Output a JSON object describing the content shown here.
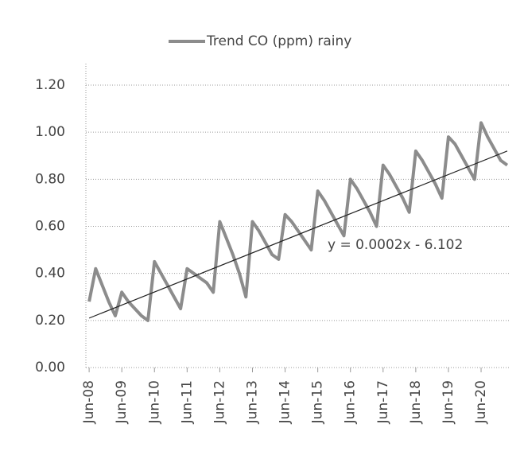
{
  "chart_data": {
    "type": "line",
    "categories": [
      "Jun-08",
      null,
      null,
      null,
      null,
      "Jun-09",
      null,
      null,
      null,
      null,
      "Jun-10",
      null,
      null,
      null,
      null,
      "Jun-11",
      null,
      null,
      null,
      null,
      "Jun-12",
      null,
      null,
      null,
      null,
      "Jun-13",
      null,
      null,
      null,
      null,
      "Jun-14",
      null,
      null,
      null,
      null,
      "Jun-15",
      null,
      null,
      null,
      null,
      "Jun-16",
      null,
      null,
      null,
      null,
      "Jun-17",
      null,
      null,
      null,
      null,
      "Jun-18",
      null,
      null,
      null,
      null,
      "Jun-19",
      null,
      null,
      null,
      null,
      "Jun-20",
      null,
      null,
      null,
      null
    ],
    "series": [
      {
        "name": "Trend CO (ppm) rainy",
        "color": "#8c8c8c",
        "values": [
          0.28,
          0.42,
          0.35,
          0.28,
          0.22,
          0.32,
          0.28,
          0.25,
          0.22,
          0.2,
          0.45,
          0.4,
          0.35,
          0.3,
          0.25,
          0.42,
          0.4,
          0.38,
          0.36,
          0.32,
          0.62,
          0.55,
          0.48,
          0.4,
          0.3,
          0.62,
          0.58,
          0.53,
          0.48,
          0.46,
          0.65,
          0.62,
          0.58,
          0.54,
          0.5,
          0.75,
          0.71,
          0.66,
          0.61,
          0.56,
          0.8,
          0.76,
          0.71,
          0.66,
          0.6,
          0.86,
          0.82,
          0.77,
          0.72,
          0.66,
          0.92,
          0.88,
          0.83,
          0.78,
          0.72,
          0.98,
          0.95,
          0.9,
          0.85,
          0.8,
          1.04,
          0.98,
          0.93,
          0.88,
          0.86
        ]
      }
    ],
    "trendline": {
      "label": "y = 0.0002x - 6.102",
      "start": 0.21,
      "end": 0.92,
      "color": "#222222"
    },
    "ylim": [
      0,
      1.2
    ],
    "yticks": [
      {
        "value": 0,
        "label": "0.00"
      },
      {
        "value": 0.2,
        "label": "0.20"
      },
      {
        "value": 0.4,
        "label": "0.40"
      },
      {
        "value": 0.6,
        "label": "0.60"
      },
      {
        "value": 0.8,
        "label": "0.80"
      },
      {
        "value": 1.0,
        "label": "1.00"
      },
      {
        "value": 1.2,
        "label": "1.20"
      }
    ],
    "grid": true
  }
}
